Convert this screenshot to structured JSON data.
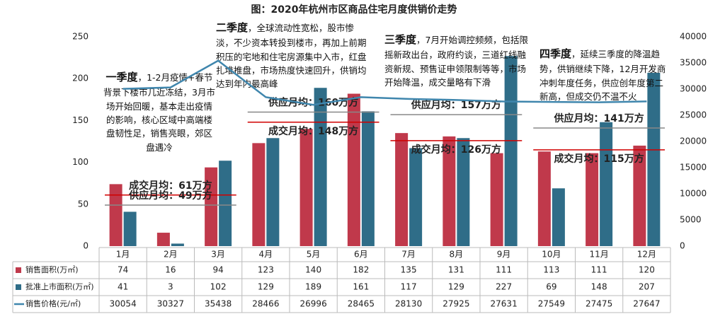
{
  "chart_data": {
    "type": "bar_line_table",
    "title": "图：2020年杭州市区商品住宅月度供销价走势",
    "categories": [
      "1月",
      "2月",
      "3月",
      "4月",
      "5月",
      "6月",
      "7月",
      "8月",
      "9月",
      "10月",
      "11月",
      "12月"
    ],
    "series": [
      {
        "name": "销售面积(万㎡)",
        "type": "bar",
        "color": "#c0394b",
        "values": [
          74,
          16,
          94,
          123,
          140,
          182,
          135,
          131,
          111,
          113,
          111,
          120
        ]
      },
      {
        "name": "批准上市面积(万㎡)",
        "type": "bar",
        "color": "#2f6d88",
        "values": [
          41,
          3,
          102,
          129,
          189,
          161,
          117,
          129,
          227,
          69,
          148,
          207
        ]
      },
      {
        "name": "销售价格(元/㎡)",
        "type": "line",
        "axis": "y2",
        "color": "#3f86ad",
        "values": [
          30054,
          30327,
          35438,
          28466,
          26996,
          28465,
          28130,
          27925,
          27631,
          27549,
          27475,
          27647
        ]
      }
    ],
    "ylim": [
      0,
      250
    ],
    "yticks": [
      0,
      50,
      100,
      150,
      200,
      250
    ],
    "y2lim": [
      0,
      40000
    ],
    "y2ticks": [
      0,
      5000,
      10000,
      15000,
      20000,
      25000,
      30000,
      35000,
      40000
    ],
    "quarters": [
      {
        "title": "一季度",
        "text": "，1-2月疫情+春节背景下楼市几近冻结，3月市场开始回暖，基本走出疫情的影响，核心区域中高端楼盘韧性足，销售亮眼，郊区盘遇冷",
        "sales_avg": {
          "value": 61,
          "label": "成交月均：61万方"
        },
        "supply_avg": {
          "value": 49,
          "label": "供应月均：49万方"
        }
      },
      {
        "title": "二季度",
        "text": "，全球流动性宽松，股市惨淡，不少资本转投到楼市，再加上前期积压的宅地和住宅房源集中入市，红盘扎堆推盘，市场热度快速回升，供销均达到年内最高峰",
        "sales_avg": {
          "value": 148,
          "label": "成交月均：148万方"
        },
        "supply_avg": {
          "value": 160,
          "label": "供应月均：160万方"
        }
      },
      {
        "title": "三季度",
        "text": "，7月开始调控频频，包括限摇新政出台，政府约谈，三道红线融资新规、预售证申领限制等等，市场开始降温，成交量略有下滑",
        "sales_avg": {
          "value": 126,
          "label": "成交月均：126万方"
        },
        "supply_avg": {
          "value": 157,
          "label": "供应月均：157万方"
        }
      },
      {
        "title": "四季度",
        "text": "，延续三季度的降温趋势，供销继续下降，12月开发商冲刺年度任务，供应创年度第二新高，但成交仍不温不火",
        "sales_avg": {
          "value": 115,
          "label": "成交月均：115万方"
        },
        "supply_avg": {
          "value": 141,
          "label": "供应月均：141万方"
        }
      }
    ]
  }
}
